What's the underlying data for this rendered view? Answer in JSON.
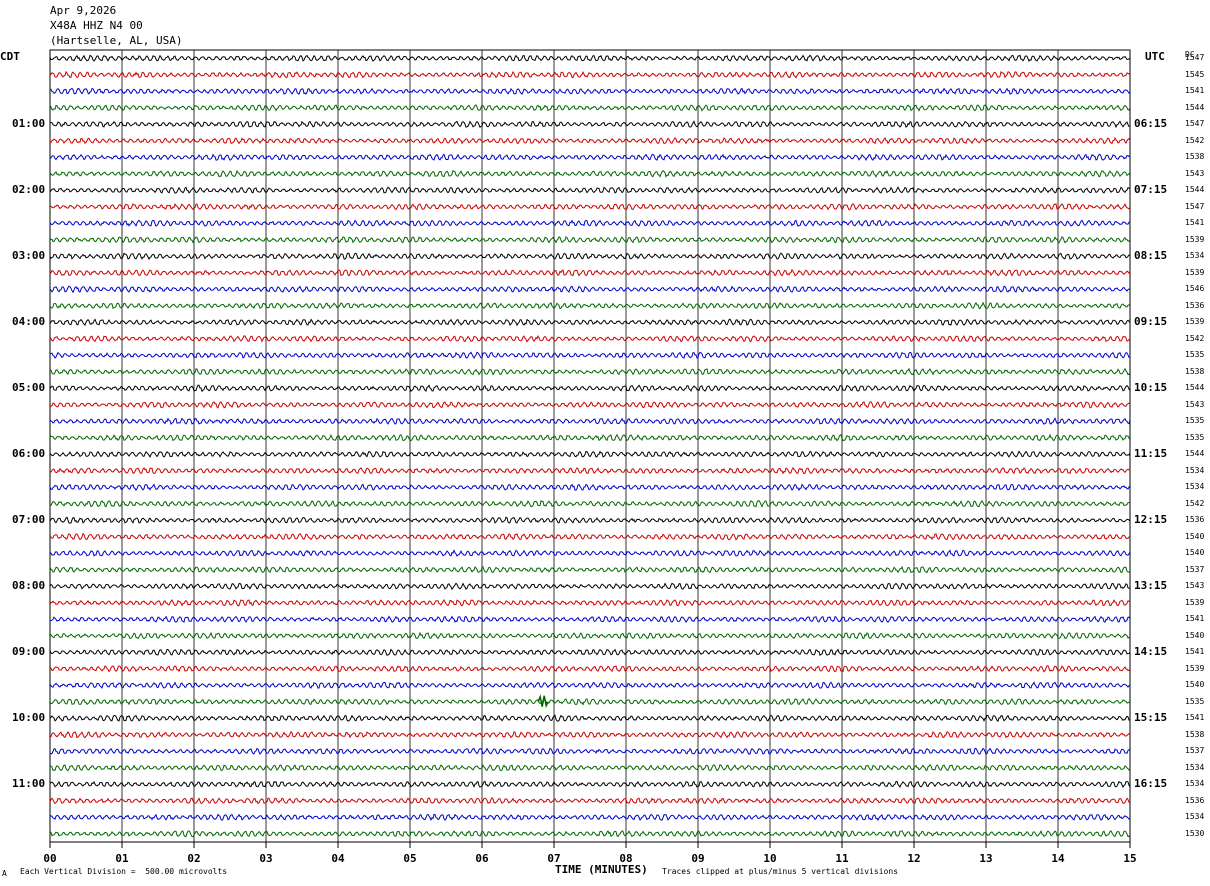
{
  "header": {
    "date": "Apr 9,2026",
    "station": "X48A HHZ N4 00",
    "location": "(Hartselle, AL, USA)"
  },
  "left_zone_label": "CDT",
  "right_zone_label": "UTC",
  "right_column_label": "DC",
  "footer": {
    "scale_marker": "A",
    "scale_note": "Each Vertical Division =  500.00 microvolts",
    "xlabel": "TIME (MINUTES)",
    "clip_note": "Traces clipped at plus/minus 5 vertical divisions"
  },
  "chart_data": {
    "type": "line",
    "title": "Apr 9,2026 X48A HHZ N4 00 (Hartselle, AL, USA)",
    "xlabel": "TIME (MINUTES)",
    "xlim": [
      0,
      15
    ],
    "x_ticks": [
      "00",
      "01",
      "02",
      "03",
      "04",
      "05",
      "06",
      "07",
      "08",
      "09",
      "10",
      "11",
      "12",
      "13",
      "14",
      "15"
    ],
    "trace_count": 48,
    "trace_minutes": 15,
    "trace_colors": [
      "#000000",
      "#cc0000",
      "#0000cc",
      "#006600"
    ],
    "grid": true,
    "left_hour_labels": [
      "01:00",
      "02:00",
      "03:00",
      "04:00",
      "05:00",
      "06:00",
      "07:00",
      "08:00",
      "09:00",
      "10:00",
      "11:00"
    ],
    "right_hour_labels": [
      "06:15",
      "07:15",
      "08:15",
      "09:15",
      "10:15",
      "11:15",
      "12:15",
      "13:15",
      "14:15",
      "15:15",
      "16:15"
    ],
    "dc_offsets": [
      1547,
      1545,
      1541,
      1544,
      1547,
      1542,
      1538,
      1543,
      1544,
      1547,
      1541,
      1539,
      1534,
      1539,
      1546,
      1536,
      1539,
      1542,
      1535,
      1538,
      1544,
      1543,
      1535,
      1535,
      1544,
      1534,
      1534,
      1542,
      1536,
      1540,
      1540,
      1537,
      1543,
      1539,
      1541,
      1540,
      1541,
      1539,
      1540,
      1535,
      1541,
      1538,
      1537,
      1534,
      1534,
      1536,
      1534,
      1530
    ],
    "events": [
      {
        "trace": 39,
        "minute": 6.85,
        "description": "small spike"
      }
    ]
  }
}
